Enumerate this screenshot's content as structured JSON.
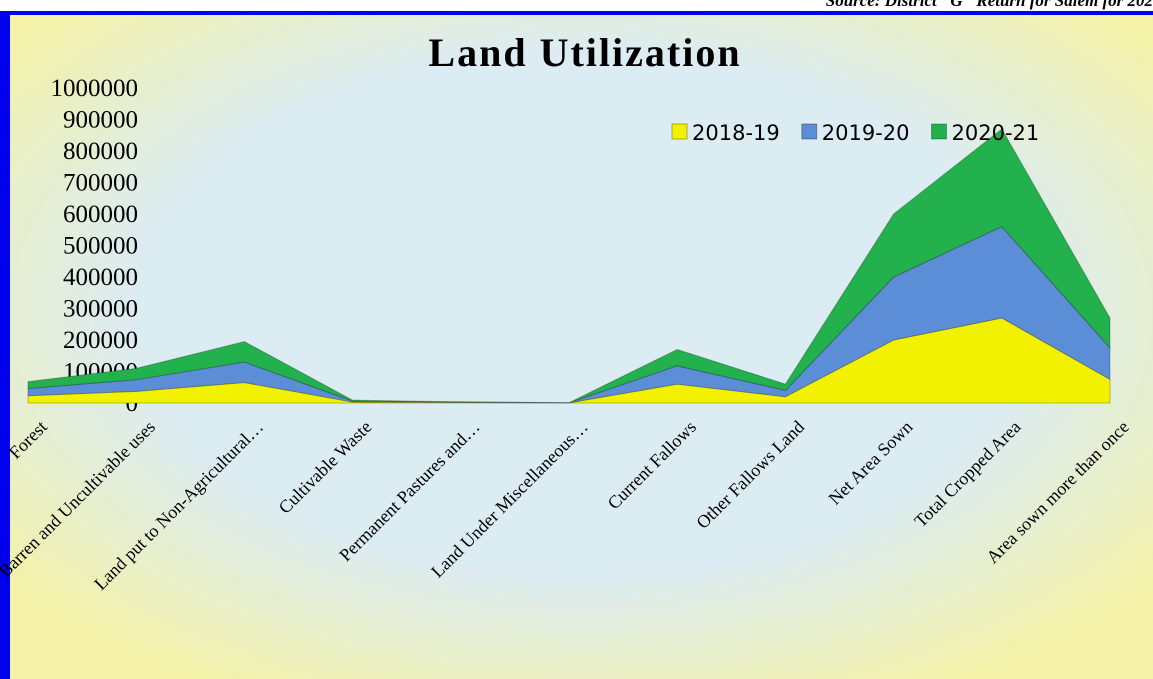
{
  "source": "Source: District \"G\" Return for Salem for 202",
  "chart_data": {
    "type": "area",
    "stacked": true,
    "title": "Land Utilization",
    "categories": [
      "Forest",
      "Barren and Uncultivable uses",
      "Land put to Non-Agricultural…",
      "Cultivable Waste",
      "Permanent Pastures and…",
      "Land Under Miscellaneous…",
      "Current Fallows",
      "Other Fallows Land",
      "Net Area Sown",
      "Total Cropped Area",
      "Area sown more than once"
    ],
    "series": [
      {
        "name": "2018-19",
        "color": "#f2f200",
        "values": [
          23000,
          37000,
          65000,
          3000,
          1500,
          300,
          60000,
          20000,
          200000,
          270000,
          75000
        ]
      },
      {
        "name": "2019-20",
        "color": "#5b8ed6",
        "values": [
          23000,
          37000,
          65000,
          3000,
          1500,
          300,
          58000,
          20000,
          200000,
          290000,
          100000
        ]
      },
      {
        "name": "2020-21",
        "color": "#22b14c",
        "values": [
          22000,
          36000,
          65000,
          3000,
          1000,
          300,
          52000,
          20000,
          200000,
          310000,
          95000
        ]
      }
    ],
    "ylim": [
      0,
      1000000
    ],
    "yticks": [
      0,
      100000,
      200000,
      300000,
      400000,
      500000,
      600000,
      700000,
      800000,
      900000,
      1000000
    ],
    "legend": "top-right"
  }
}
